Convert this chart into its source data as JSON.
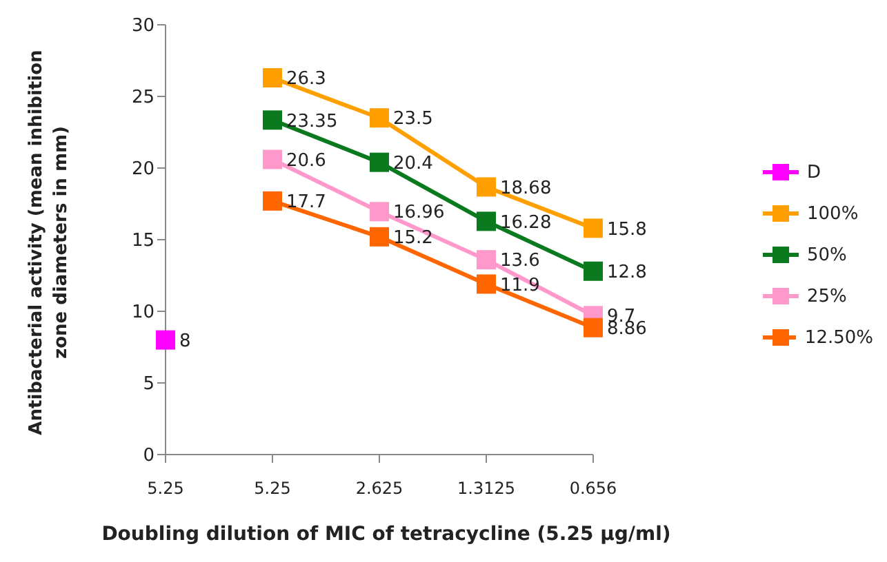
{
  "chart_data": {
    "type": "line",
    "xlabel": "Doubling dilution of MIC of tetracycline (5.25 µg/ml)",
    "ylabel": "Antibacterial activity (mean inhibition zone diameters in mm)",
    "categories": [
      "5.25",
      "5.25",
      "2.625",
      "1.3125",
      "0.656"
    ],
    "series": [
      {
        "name": "D",
        "color": "#ff00ff",
        "values": [
          8,
          null,
          null,
          null,
          null
        ]
      },
      {
        "name": "100%",
        "color": "#ffa000",
        "values": [
          null,
          26.3,
          23.5,
          18.68,
          15.8
        ]
      },
      {
        "name": "50%",
        "color": "#0b7a1e",
        "values": [
          null,
          23.35,
          20.4,
          16.28,
          12.8
        ]
      },
      {
        "name": "25%",
        "color": "#ff99cc",
        "values": [
          null,
          20.6,
          16.96,
          13.6,
          9.7
        ]
      },
      {
        "name": "12.50%",
        "color": "#ff6600",
        "values": [
          null,
          17.7,
          15.2,
          11.9,
          8.86
        ]
      }
    ],
    "ylim": [
      0,
      30
    ],
    "yticks": [
      0,
      5,
      10,
      15,
      20,
      25,
      30
    ],
    "data_labels": true,
    "marker": "square",
    "legend": "right",
    "line_style": "solid"
  }
}
